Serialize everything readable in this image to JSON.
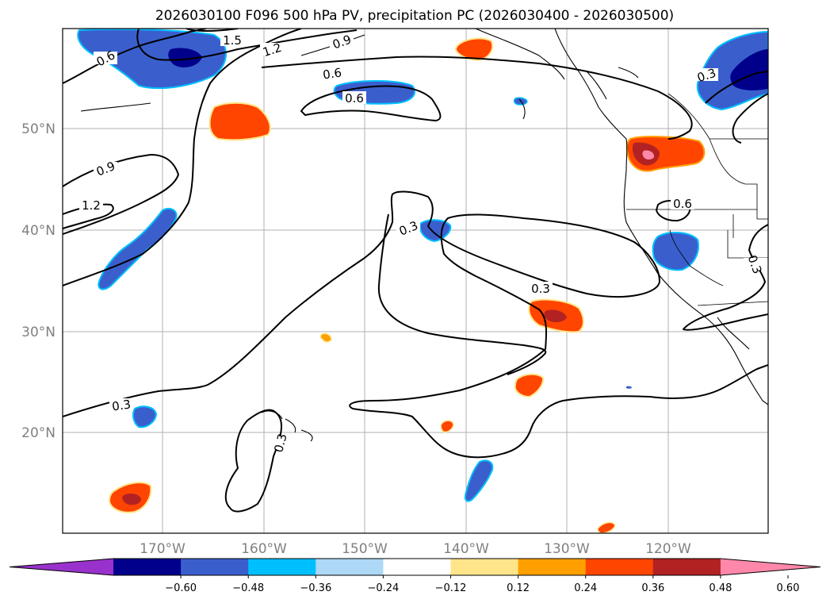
{
  "title": "2026030100 F096 500 hPa PV, precipitation PC (2026030400 - 2026030500)",
  "lat_labels": [
    "50°N",
    "40°N",
    "30°N",
    "20°N"
  ],
  "lon_labels": [
    "170°W",
    "160°W",
    "150°W",
    "140°W",
    "130°W",
    "120°W"
  ],
  "contour_labels": [
    "1.5",
    "1.2",
    "0.9",
    "0.6",
    "0.6",
    "0.6",
    "0.3",
    "0.9",
    "1.2",
    "0.6",
    "0.3",
    "0.3",
    "0.3",
    "0.3",
    "0.3"
  ],
  "colorbar": {
    "ticks": [
      "−0.60",
      "−0.48",
      "−0.36",
      "−0.24",
      "−0.12",
      "0.12",
      "0.24",
      "0.36",
      "0.48",
      "0.60"
    ],
    "colors": [
      "#9932cc",
      "#00008b",
      "#3a5fcd",
      "#00bfff",
      "#add8f6",
      "#ffffff",
      "#ffe58a",
      "#ffa000",
      "#ff4500",
      "#b22222",
      "#ff88aa"
    ]
  }
}
